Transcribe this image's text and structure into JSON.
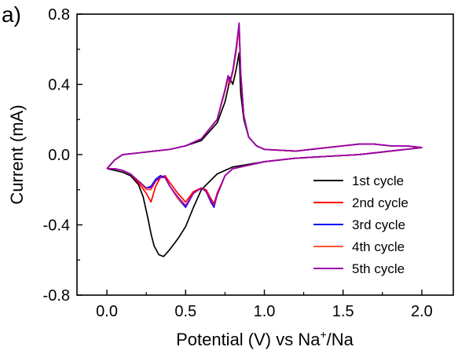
{
  "panel_label": "a)",
  "chart_data": {
    "type": "line",
    "title": "",
    "xlabel": "Potential (V) vs Na",
    "xlabel_sup": "+",
    "xlabel_tail": "/Na",
    "ylabel": "Current (mA)",
    "xlim": [
      -0.19,
      2.2
    ],
    "ylim": [
      -0.8,
      0.8
    ],
    "xticks": [
      0.0,
      0.5,
      1.0,
      1.5,
      2.0
    ],
    "xtick_labels": [
      "0.0",
      "0.5",
      "1.0",
      "1.5",
      "2.0"
    ],
    "yticks": [
      -0.8,
      -0.4,
      0.0,
      0.4,
      0.8
    ],
    "ytick_labels": [
      "-0.8",
      "-0.4",
      "0.0",
      "0.4",
      "0.8"
    ],
    "legend_position": "bottom-right",
    "grid": false,
    "series": [
      {
        "name": "1st cycle",
        "color": "#000000",
        "x": [
          0.0,
          0.05,
          0.1,
          0.15,
          0.2,
          0.23,
          0.26,
          0.28,
          0.3,
          0.33,
          0.36,
          0.4,
          0.45,
          0.5,
          0.55,
          0.6,
          0.7,
          0.8,
          1.0,
          1.2,
          1.4,
          1.6,
          1.8,
          1.9,
          2.0,
          1.9,
          1.8,
          1.7,
          1.6,
          1.5,
          1.4,
          1.2,
          1.0,
          0.95,
          0.9,
          0.87,
          0.85,
          0.84,
          0.82,
          0.8,
          0.78,
          0.77,
          0.75,
          0.7,
          0.6,
          0.5,
          0.4,
          0.3,
          0.2,
          0.1,
          0.05,
          0.0
        ],
        "y": [
          -0.08,
          -0.09,
          -0.1,
          -0.12,
          -0.17,
          -0.24,
          -0.36,
          -0.45,
          -0.52,
          -0.57,
          -0.58,
          -0.54,
          -0.48,
          -0.41,
          -0.3,
          -0.2,
          -0.11,
          -0.07,
          -0.04,
          -0.02,
          -0.01,
          0.0,
          0.02,
          0.03,
          0.04,
          0.05,
          0.05,
          0.06,
          0.06,
          0.05,
          0.04,
          0.02,
          0.03,
          0.05,
          0.1,
          0.2,
          0.35,
          0.58,
          0.48,
          0.4,
          0.44,
          0.38,
          0.3,
          0.18,
          0.08,
          0.05,
          0.03,
          0.02,
          0.01,
          0.0,
          -0.03,
          -0.08
        ]
      },
      {
        "name": "2nd cycle",
        "color": "#ff0000",
        "x": [
          0.0,
          0.05,
          0.1,
          0.15,
          0.2,
          0.25,
          0.28,
          0.31,
          0.34,
          0.37,
          0.4,
          0.45,
          0.5,
          0.55,
          0.6,
          0.63,
          0.66,
          0.68,
          0.7,
          0.75,
          0.8,
          1.0,
          1.2,
          1.4,
          1.6,
          1.8,
          1.9,
          2.0,
          1.9,
          1.8,
          1.7,
          1.6,
          1.5,
          1.4,
          1.2,
          1.0,
          0.95,
          0.9,
          0.87,
          0.85,
          0.84,
          0.82,
          0.8,
          0.78,
          0.77,
          0.75,
          0.7,
          0.6,
          0.5,
          0.4,
          0.3,
          0.2,
          0.1,
          0.05,
          0.0
        ],
        "y": [
          -0.08,
          -0.08,
          -0.09,
          -0.11,
          -0.16,
          -0.22,
          -0.27,
          -0.18,
          -0.13,
          -0.12,
          -0.16,
          -0.22,
          -0.27,
          -0.21,
          -0.19,
          -0.2,
          -0.25,
          -0.28,
          -0.22,
          -0.12,
          -0.08,
          -0.04,
          -0.02,
          -0.01,
          0.0,
          0.02,
          0.03,
          0.04,
          0.05,
          0.05,
          0.06,
          0.06,
          0.05,
          0.04,
          0.02,
          0.03,
          0.05,
          0.1,
          0.22,
          0.45,
          0.72,
          0.58,
          0.47,
          0.4,
          0.44,
          0.36,
          0.2,
          0.09,
          0.05,
          0.03,
          0.02,
          0.01,
          0.0,
          -0.03,
          -0.08
        ]
      },
      {
        "name": "3rd cycle",
        "color": "#0000ff",
        "x": [
          0.0,
          0.05,
          0.1,
          0.15,
          0.2,
          0.25,
          0.28,
          0.31,
          0.34,
          0.37,
          0.4,
          0.45,
          0.5,
          0.55,
          0.6,
          0.63,
          0.66,
          0.68,
          0.7,
          0.75,
          0.8,
          1.0,
          1.2,
          1.4,
          1.6,
          1.8,
          1.9,
          2.0,
          1.9,
          1.8,
          1.7,
          1.6,
          1.5,
          1.4,
          1.2,
          1.0,
          0.95,
          0.9,
          0.87,
          0.85,
          0.84,
          0.82,
          0.8,
          0.78,
          0.77,
          0.75,
          0.7,
          0.6,
          0.5,
          0.4,
          0.3,
          0.2,
          0.1,
          0.05,
          0.0
        ],
        "y": [
          -0.08,
          -0.08,
          -0.09,
          -0.11,
          -0.15,
          -0.19,
          -0.18,
          -0.14,
          -0.12,
          -0.13,
          -0.18,
          -0.25,
          -0.3,
          -0.22,
          -0.19,
          -0.21,
          -0.27,
          -0.3,
          -0.23,
          -0.12,
          -0.08,
          -0.04,
          -0.02,
          -0.01,
          0.0,
          0.02,
          0.03,
          0.04,
          0.05,
          0.05,
          0.06,
          0.06,
          0.05,
          0.04,
          0.02,
          0.03,
          0.05,
          0.1,
          0.22,
          0.46,
          0.74,
          0.6,
          0.48,
          0.41,
          0.45,
          0.37,
          0.2,
          0.09,
          0.05,
          0.03,
          0.02,
          0.01,
          0.0,
          -0.03,
          -0.08
        ]
      },
      {
        "name": "4th cycle",
        "color": "#ff5533",
        "x": [
          0.0,
          0.05,
          0.1,
          0.15,
          0.2,
          0.25,
          0.28,
          0.31,
          0.34,
          0.37,
          0.4,
          0.45,
          0.5,
          0.55,
          0.6,
          0.63,
          0.66,
          0.68,
          0.7,
          0.75,
          0.8,
          1.0,
          1.2,
          1.4,
          1.6,
          1.8,
          1.9,
          2.0,
          1.9,
          1.8,
          1.7,
          1.6,
          1.5,
          1.4,
          1.2,
          1.0,
          0.95,
          0.9,
          0.87,
          0.85,
          0.84,
          0.82,
          0.8,
          0.78,
          0.77,
          0.75,
          0.7,
          0.6,
          0.5,
          0.4,
          0.3,
          0.2,
          0.1,
          0.05,
          0.0
        ],
        "y": [
          -0.08,
          -0.08,
          -0.09,
          -0.11,
          -0.15,
          -0.2,
          -0.2,
          -0.15,
          -0.13,
          -0.13,
          -0.18,
          -0.25,
          -0.29,
          -0.22,
          -0.19,
          -0.21,
          -0.26,
          -0.29,
          -0.23,
          -0.12,
          -0.08,
          -0.04,
          -0.02,
          -0.01,
          0.0,
          0.02,
          0.03,
          0.04,
          0.05,
          0.05,
          0.06,
          0.06,
          0.05,
          0.04,
          0.02,
          0.03,
          0.05,
          0.1,
          0.22,
          0.46,
          0.73,
          0.59,
          0.47,
          0.4,
          0.44,
          0.36,
          0.2,
          0.09,
          0.05,
          0.03,
          0.02,
          0.01,
          0.0,
          -0.03,
          -0.08
        ]
      },
      {
        "name": "5th cycle",
        "color": "#9900aa",
        "x": [
          0.0,
          0.05,
          0.1,
          0.15,
          0.2,
          0.25,
          0.28,
          0.31,
          0.34,
          0.37,
          0.4,
          0.45,
          0.5,
          0.55,
          0.6,
          0.63,
          0.66,
          0.68,
          0.7,
          0.75,
          0.8,
          1.0,
          1.2,
          1.4,
          1.6,
          1.8,
          1.9,
          2.0,
          1.9,
          1.8,
          1.7,
          1.6,
          1.5,
          1.4,
          1.2,
          1.0,
          0.95,
          0.9,
          0.87,
          0.85,
          0.84,
          0.82,
          0.8,
          0.78,
          0.77,
          0.75,
          0.7,
          0.6,
          0.5,
          0.4,
          0.3,
          0.2,
          0.1,
          0.05,
          0.0
        ],
        "y": [
          -0.08,
          -0.08,
          -0.09,
          -0.11,
          -0.15,
          -0.19,
          -0.19,
          -0.15,
          -0.13,
          -0.13,
          -0.18,
          -0.24,
          -0.29,
          -0.22,
          -0.19,
          -0.21,
          -0.26,
          -0.29,
          -0.23,
          -0.12,
          -0.08,
          -0.04,
          -0.02,
          -0.01,
          0.0,
          0.02,
          0.03,
          0.04,
          0.05,
          0.05,
          0.06,
          0.06,
          0.05,
          0.04,
          0.02,
          0.03,
          0.05,
          0.1,
          0.22,
          0.47,
          0.75,
          0.6,
          0.48,
          0.41,
          0.45,
          0.37,
          0.2,
          0.09,
          0.05,
          0.03,
          0.02,
          0.01,
          0.0,
          -0.03,
          -0.08
        ]
      }
    ]
  }
}
